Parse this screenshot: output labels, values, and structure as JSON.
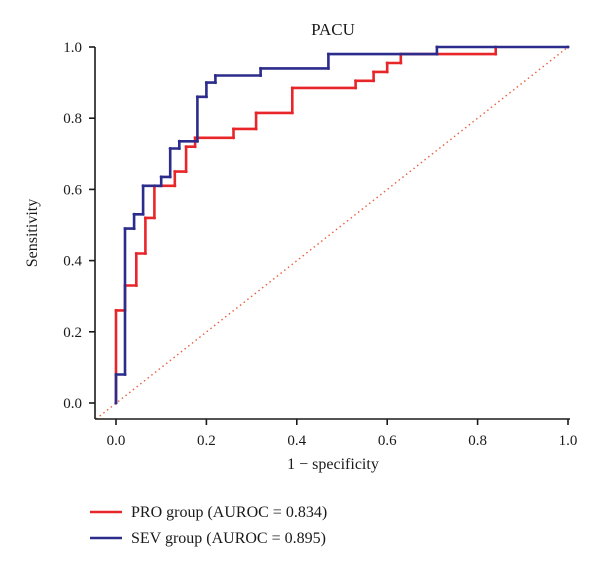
{
  "chart_data": {
    "type": "line",
    "title": "PACU",
    "xlabel": "1 − specificity",
    "ylabel": "Sensitivity",
    "xlim": [
      0,
      1
    ],
    "ylim": [
      0,
      1
    ],
    "xticks": [
      "0.0",
      "0.2",
      "0.4",
      "0.6",
      "0.8",
      "1.0"
    ],
    "yticks": [
      "0.0",
      "0.2",
      "0.4",
      "0.6",
      "0.8",
      "1.0"
    ],
    "grid": false,
    "legend_position": "bottom-left",
    "reference_line": {
      "x": [
        0,
        1
      ],
      "y": [
        0,
        1
      ],
      "color": "#e8603c",
      "style": "dotted"
    },
    "series": [
      {
        "name": "PRO group (AUROC = 0.834)",
        "color": "#e8262a",
        "x": [
          0,
          0,
          0.02,
          0.02,
          0.045,
          0.045,
          0.065,
          0.065,
          0.085,
          0.085,
          0.13,
          0.13,
          0.155,
          0.155,
          0.175,
          0.175,
          0.26,
          0.26,
          0.31,
          0.31,
          0.39,
          0.39,
          0.53,
          0.53,
          0.57,
          0.57,
          0.6,
          0.6,
          0.63,
          0.63,
          0.84,
          0.84
        ],
        "y": [
          0,
          0.26,
          0.26,
          0.33,
          0.33,
          0.42,
          0.42,
          0.52,
          0.52,
          0.61,
          0.61,
          0.65,
          0.65,
          0.72,
          0.72,
          0.745,
          0.745,
          0.77,
          0.77,
          0.815,
          0.815,
          0.885,
          0.885,
          0.905,
          0.905,
          0.93,
          0.93,
          0.955,
          0.955,
          0.98,
          0.98,
          1.0
        ]
      },
      {
        "name": "SEV group (AUROC = 0.895)",
        "color": "#2b2c8c",
        "x": [
          0,
          0,
          0.02,
          0.02,
          0.04,
          0.04,
          0.06,
          0.06,
          0.1,
          0.1,
          0.12,
          0.12,
          0.14,
          0.14,
          0.18,
          0.18,
          0.2,
          0.2,
          0.22,
          0.22,
          0.32,
          0.32,
          0.47,
          0.47,
          0.71,
          0.71,
          1.0
        ],
        "y": [
          0,
          0.08,
          0.08,
          0.49,
          0.49,
          0.53,
          0.53,
          0.61,
          0.61,
          0.635,
          0.635,
          0.715,
          0.715,
          0.735,
          0.735,
          0.86,
          0.86,
          0.9,
          0.9,
          0.92,
          0.92,
          0.94,
          0.94,
          0.98,
          0.98,
          1.0,
          1.0
        ]
      }
    ]
  }
}
